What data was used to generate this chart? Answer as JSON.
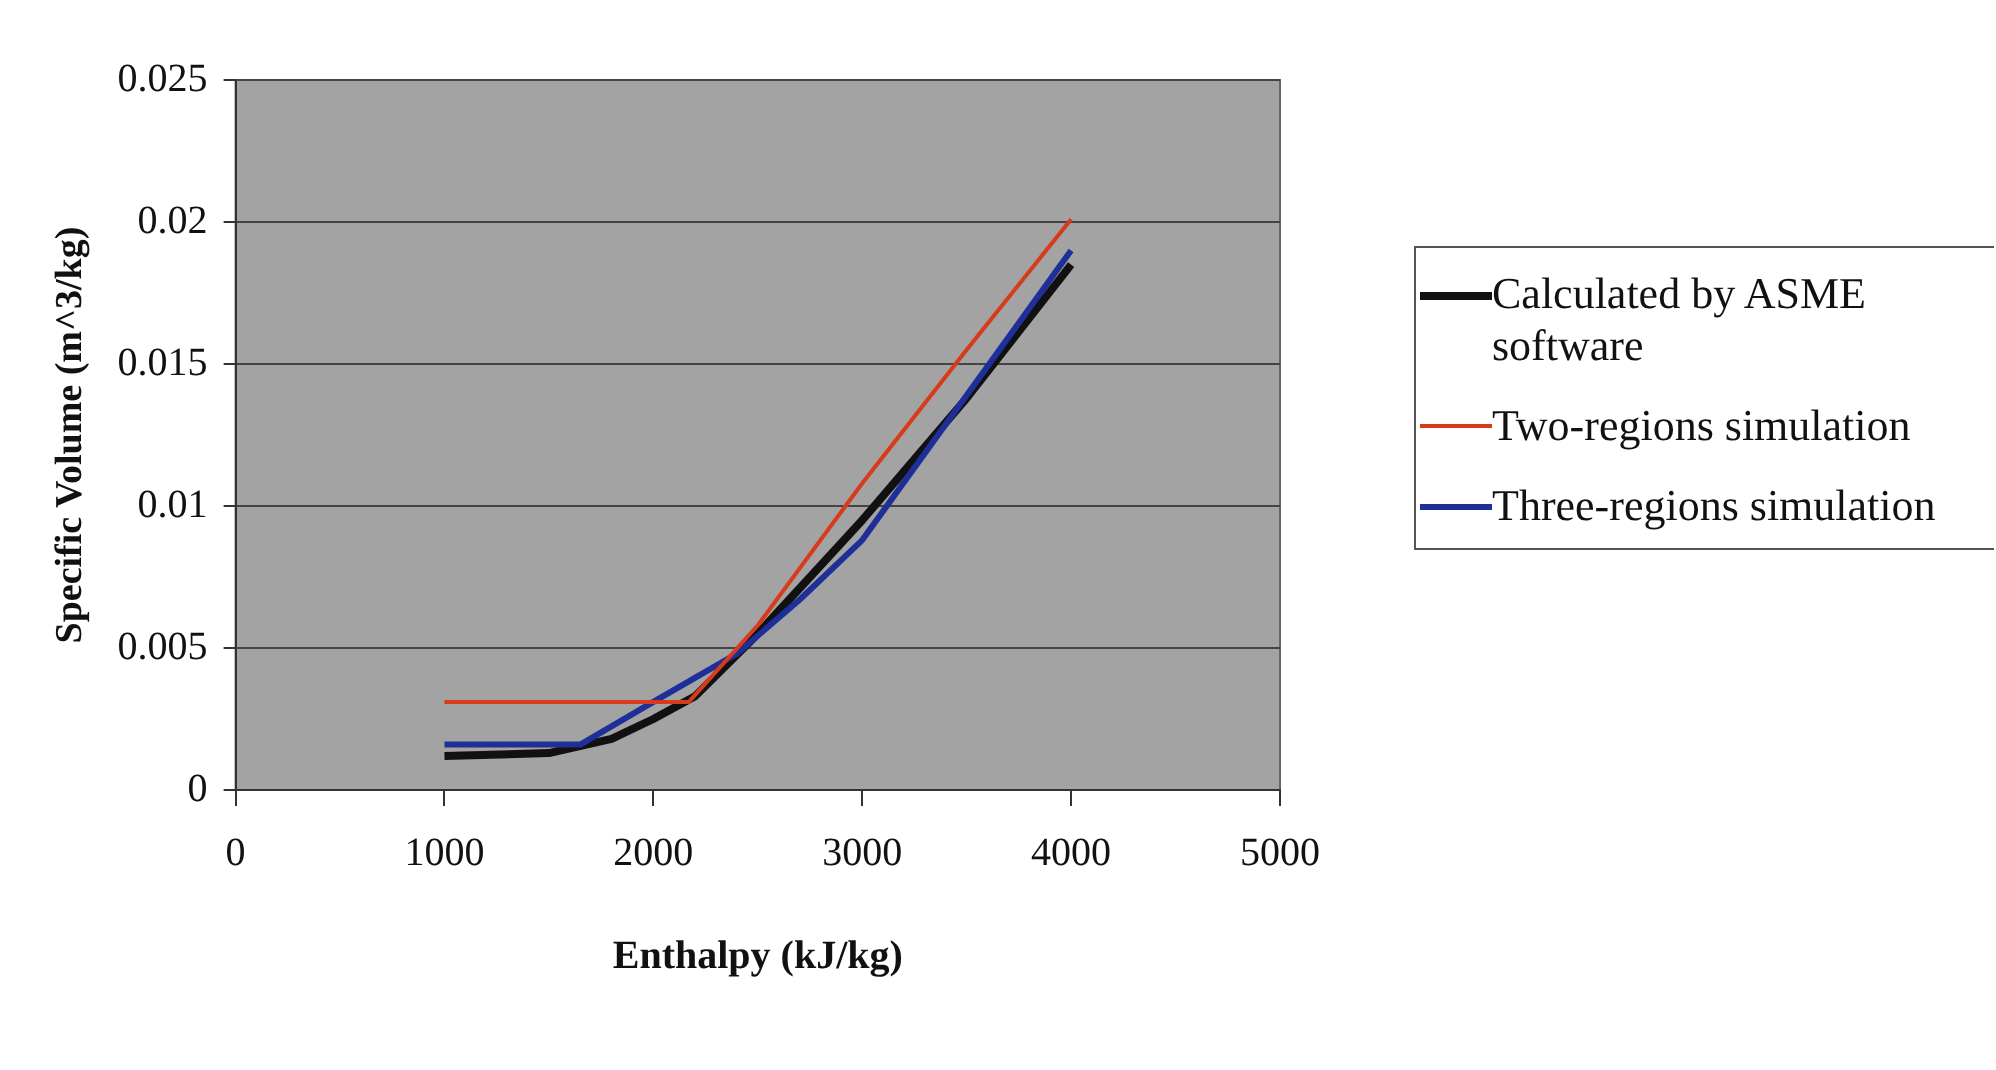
{
  "chart_data": {
    "type": "line",
    "xlabel": "Enthalpy (kJ/kg)",
    "ylabel": "Specific Volume (m^3/kg)",
    "xlim": [
      0,
      5000
    ],
    "xticks": [
      0,
      1000,
      2000,
      3000,
      4000,
      5000
    ],
    "ylim": [
      0,
      0.025
    ],
    "yticks": [
      0,
      0.005,
      0.01,
      0.015,
      0.02,
      0.025
    ],
    "grid": "y",
    "legend": "right",
    "marker": "none",
    "line_style": "solid",
    "series": [
      {
        "name": "Calculated by ASME software",
        "color": "#111111",
        "x": [
          1000,
          1500,
          1800,
          2000,
          2200,
          2500,
          3000,
          3500,
          4000
        ],
        "values": [
          0.0012,
          0.0013,
          0.0018,
          0.0025,
          0.0033,
          0.0055,
          0.0095,
          0.0138,
          0.0185
        ]
      },
      {
        "name": "Two-regions simulation",
        "color": "#d83a1c",
        "x": [
          1000,
          2170,
          2500,
          3000,
          3500,
          4000
        ],
        "values": [
          0.0031,
          0.0031,
          0.0058,
          0.0108,
          0.0155,
          0.0201
        ]
      },
      {
        "name": "Three-regions simulation",
        "color": "#1f2f9a",
        "x": [
          1000,
          1650,
          2000,
          2400,
          2700,
          3000,
          3500,
          4000
        ],
        "values": [
          0.0016,
          0.0016,
          0.0031,
          0.0048,
          0.0067,
          0.0088,
          0.0139,
          0.019
        ]
      }
    ]
  }
}
